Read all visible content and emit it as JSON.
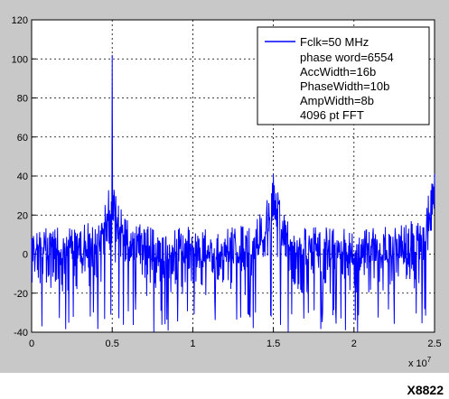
{
  "figure_id": "X8822",
  "colors": {
    "figure_background": "#c8c8c8",
    "axes_background": "#ffffff",
    "series": "#0000ff",
    "grid": "#000000"
  },
  "chart_data": {
    "type": "line",
    "title": "",
    "xlabel": "",
    "ylabel": "",
    "x_exponent_label": "x 10",
    "x_exponent_power": "7",
    "xlim": [
      0,
      2.5
    ],
    "ylim": [
      -40,
      120
    ],
    "xticks": [
      "0",
      "0.5",
      "1",
      "1.5",
      "2",
      "2.5"
    ],
    "yticks": [
      "-40",
      "-20",
      "0",
      "20",
      "40",
      "60",
      "80",
      "100",
      "120"
    ],
    "grid": true,
    "grid_style": "dotted",
    "legend_position": "top-right",
    "legend_lines": [
      "Fclk=50 MHz",
      "phase word=6554",
      "AccWidth=16b",
      "PhaseWidth=10b",
      "AmpWidth=8b",
      "4096 pt FFT"
    ],
    "series": [
      {
        "name": "Fclk=50 MHz",
        "color": "#0000ff",
        "noise_floor": 5,
        "spikes": [
          {
            "x": 0.5,
            "peak": 102
          },
          {
            "x": 1.5,
            "peak": 41
          },
          {
            "x": 2.5,
            "peak": 41
          }
        ],
        "humps": [
          {
            "x": 0.5,
            "height": 28
          },
          {
            "x": 1.5,
            "height": 28
          },
          {
            "x": 2.5,
            "height": 32
          }
        ],
        "deep_dips_to": -40
      }
    ]
  }
}
